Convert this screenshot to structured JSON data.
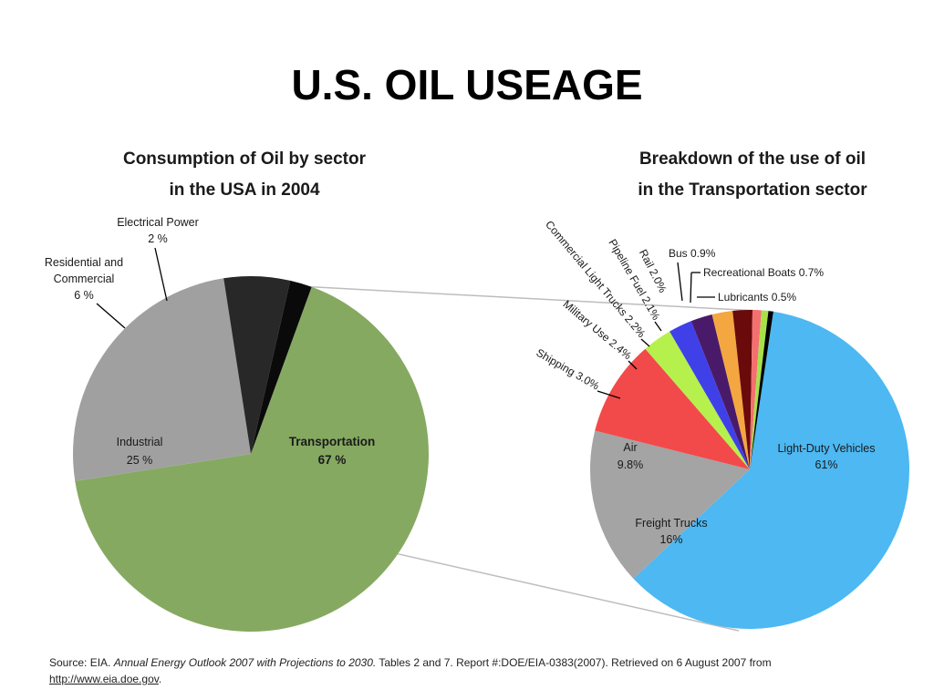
{
  "slide_title": "U.S. OIL USEAGE",
  "colors": {
    "transportation": "#86a961",
    "industrial": "#a0a0a0",
    "residential": "#282828",
    "electrical": "#0a0a0a",
    "light_duty": "#4db8f2",
    "freight": "#a4a4a4",
    "air": "#f24a4a",
    "shipping": "#b6f04d",
    "military": "#4040e8",
    "commercial_light": "#4a1a6a",
    "pipeline": "#f4a641",
    "rail": "#6a0a0a",
    "bus": "#f47070",
    "boats": "#a8e04a",
    "lubricants": "#000000"
  },
  "chart_data": [
    {
      "type": "pie",
      "title": "Consumption of Oil by sector in the USA in 2004",
      "title_lines": [
        "Consumption of Oil by sector",
        "in the USA in 2004"
      ],
      "slices": [
        {
          "label": "Transportation",
          "value_label": "67 %",
          "value": 67,
          "color_key": "transportation"
        },
        {
          "label": "Industrial",
          "value_label": "25 %",
          "value": 25,
          "color_key": "industrial"
        },
        {
          "label": "Residential and Commercial",
          "label_lines": [
            "Residential and",
            "Commercial"
          ],
          "value_label": "6 %",
          "value": 6,
          "color_key": "residential"
        },
        {
          "label": "Electrical Power",
          "value_label": "2 %",
          "value": 2,
          "color_key": "electrical"
        }
      ]
    },
    {
      "type": "pie",
      "title": "Breakdown of the use of oil in the Transportation sector",
      "title_lines": [
        "Breakdown of the use of oil",
        "in the Transportation sector"
      ],
      "slices": [
        {
          "label": "Light-Duty Vehicles",
          "value_label": "61%",
          "value": 61,
          "color_key": "light_duty"
        },
        {
          "label": "Freight Trucks",
          "value_label": "16%",
          "value": 16,
          "color_key": "freight"
        },
        {
          "label": "Air",
          "value_label": "9.8%",
          "value": 9.8,
          "color_key": "air"
        },
        {
          "label": "Shipping 3.0%",
          "value": 3.0,
          "color_key": "shipping"
        },
        {
          "label": "Military Use 2.4%",
          "value": 2.4,
          "color_key": "military"
        },
        {
          "label": "Commercial Light Trucks 2.2%",
          "value": 2.2,
          "color_key": "commercial_light"
        },
        {
          "label": "Pipeline Fuel 2.1%",
          "value": 2.1,
          "color_key": "pipeline"
        },
        {
          "label": "Rail 2.0%",
          "value": 2.0,
          "color_key": "rail"
        },
        {
          "label": "Bus 0.9%",
          "value": 0.9,
          "color_key": "bus"
        },
        {
          "label": "Recreational Boats 0.7%",
          "value": 0.7,
          "color_key": "boats"
        },
        {
          "label": "Lubricants 0.5%",
          "value": 0.5,
          "color_key": "lubricants"
        }
      ]
    }
  ],
  "source": {
    "prefix": "Source: EIA. ",
    "publication": "Annual Energy Outlook 2007 with Projections to 2030.",
    "middle": " Tables 2 and 7. Report #:DOE/EIA-0383(2007). Retrieved on 6 August 2007 from ",
    "link": "http://www.eia.doe.gov",
    "suffix": "."
  }
}
